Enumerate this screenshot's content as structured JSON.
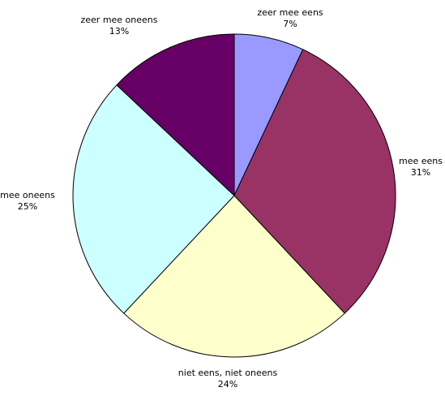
{
  "chart_data": {
    "type": "pie",
    "title": "",
    "start_angle_deg": 0,
    "direction": "clockwise",
    "slices": [
      {
        "label": "zeer mee eens",
        "percent_label": "7%",
        "value": 7,
        "color": "#9999ff"
      },
      {
        "label": "mee eens",
        "percent_label": "31%",
        "value": 31,
        "color": "#993366"
      },
      {
        "label": "niet eens, niet oneens",
        "percent_label": "24%",
        "value": 24,
        "color": "#ffffcc"
      },
      {
        "label": "mee oneens",
        "percent_label": "25%",
        "value": 25,
        "color": "#ccffff"
      },
      {
        "label": "zeer mee oneens",
        "percent_label": "13%",
        "value": 13,
        "color": "#660066"
      }
    ],
    "legend": "none",
    "data_labels": "outside"
  }
}
